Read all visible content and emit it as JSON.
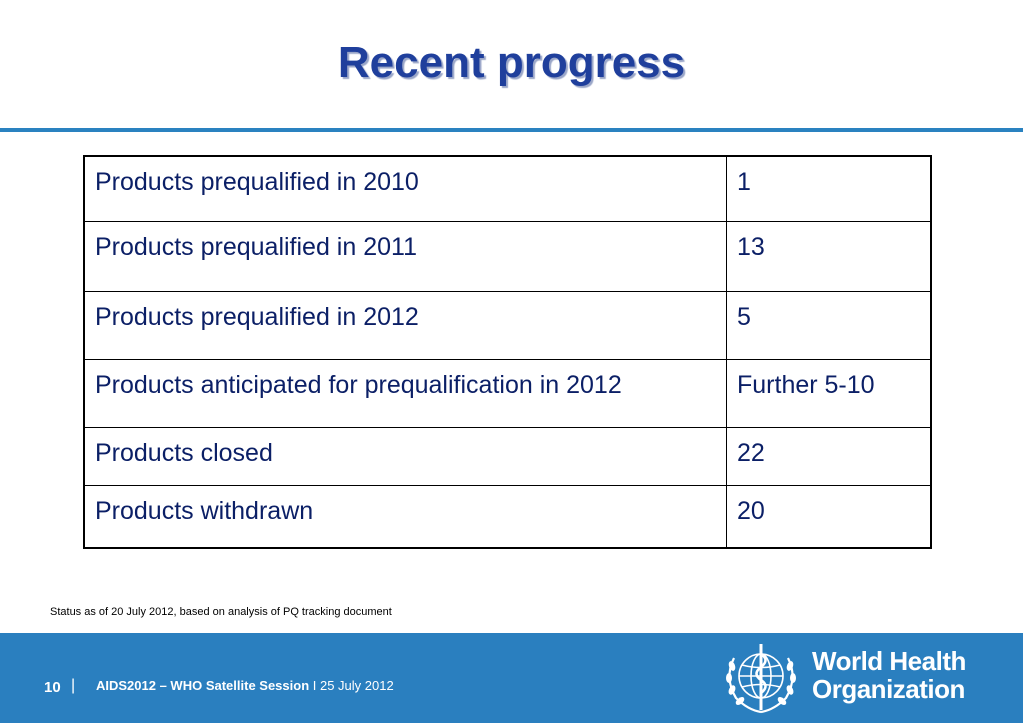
{
  "slide": {
    "title": "Recent progress",
    "table": [
      {
        "label": "Products prequalified in 2010",
        "value": "1"
      },
      {
        "label": "Products prequalified in 2011",
        "value": "13"
      },
      {
        "label": "Products prequalified in 2012",
        "value": "5"
      },
      {
        "label": "Products anticipated for prequalification in 2012",
        "value": "Further 5-10"
      },
      {
        "label": "Products closed",
        "value": "22"
      },
      {
        "label": "Products withdrawn",
        "value": "20"
      }
    ],
    "footnote": "Status as of 20 July 2012, based on analysis of PQ tracking document"
  },
  "footer": {
    "page_number": "10",
    "separator": "|",
    "event_name": "AIDS2012 – WHO Satellite Session",
    "event_date": " I 25 July 2012",
    "org_line1": "World Health",
    "org_line2": "Organization",
    "colors": {
      "band": "#2a7fbf",
      "title": "#1f3f9c",
      "text": "#0b1f66"
    }
  }
}
